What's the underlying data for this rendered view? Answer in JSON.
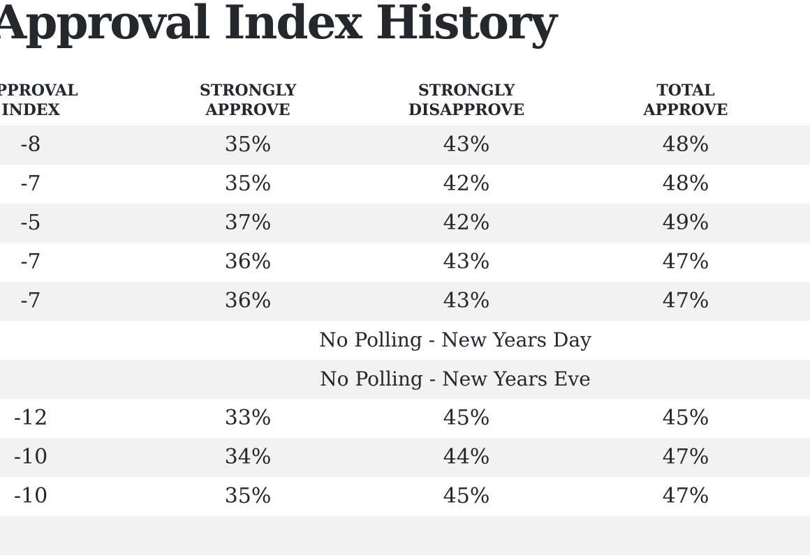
{
  "page": {
    "title": "Approval Index History"
  },
  "colors": {
    "background": "#ffffff",
    "stripe": "#f2f2f2",
    "text": "#24272c"
  },
  "chart_data": {
    "type": "table",
    "title": "Approval Index History",
    "columns": [
      "APPROVAL\nINDEX",
      "STRONGLY\nAPPROVE",
      "STRONGLY\nDISAPPROVE",
      "TOTAL\nAPPROVE"
    ],
    "rows": [
      {
        "approval_index": "-8",
        "strongly_approve": "35%",
        "strongly_disapprove": "43%",
        "total_approve": "48%"
      },
      {
        "approval_index": "-7",
        "strongly_approve": "35%",
        "strongly_disapprove": "42%",
        "total_approve": "48%"
      },
      {
        "approval_index": "-5",
        "strongly_approve": "37%",
        "strongly_disapprove": "42%",
        "total_approve": "49%"
      },
      {
        "approval_index": "-7",
        "strongly_approve": "36%",
        "strongly_disapprove": "43%",
        "total_approve": "47%"
      },
      {
        "approval_index": "-7",
        "strongly_approve": "36%",
        "strongly_disapprove": "43%",
        "total_approve": "47%"
      },
      {
        "note": "No Polling - New Years Day"
      },
      {
        "note": "No Polling - New Years Eve"
      },
      {
        "approval_index": "-12",
        "strongly_approve": "33%",
        "strongly_disapprove": "45%",
        "total_approve": "45%"
      },
      {
        "approval_index": "-10",
        "strongly_approve": "34%",
        "strongly_disapprove": "44%",
        "total_approve": "47%"
      },
      {
        "approval_index": "-10",
        "strongly_approve": "35%",
        "strongly_disapprove": "45%",
        "total_approve": "47%"
      },
      {
        "partial": true
      }
    ]
  }
}
